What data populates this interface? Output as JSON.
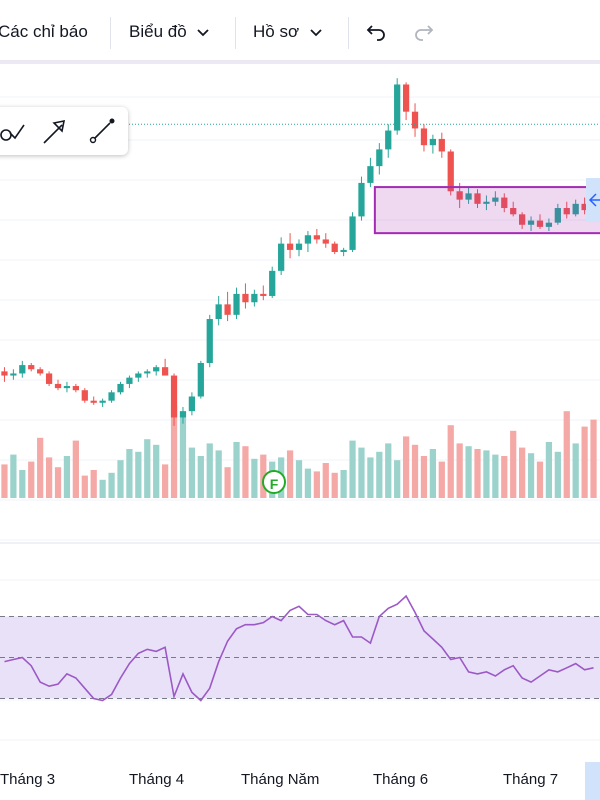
{
  "toolbar": {
    "indicators_label": "Các chỉ báo",
    "chart_type_label": "Biểu đồ",
    "profile_label": "Hồ sơ"
  },
  "drawing_tools": [
    "curve-tool-icon",
    "arrow-tool-icon",
    "ray-tool-icon"
  ],
  "event_badge": "F",
  "colors": {
    "up": "#26a69a",
    "down": "#ef5350",
    "rsi": "#9c59c6",
    "zone": "#e9e1f8",
    "box": "#a32bb4"
  },
  "chart_data": [
    {
      "type": "candlestick",
      "x_tick_labels": [
        "Tháng 3",
        "Tháng 4",
        "Tháng Năm",
        "Tháng 6",
        "Tháng 7"
      ],
      "candles_ohlc": [
        [
          13.8,
          14.0,
          13.3,
          13.6
        ],
        [
          13.6,
          13.9,
          13.4,
          13.7
        ],
        [
          13.7,
          14.3,
          13.5,
          14.1
        ],
        [
          14.1,
          14.2,
          13.8,
          13.9
        ],
        [
          13.9,
          14.0,
          13.6,
          13.7
        ],
        [
          13.7,
          13.8,
          13.1,
          13.2
        ],
        [
          13.2,
          13.4,
          12.9,
          13.0
        ],
        [
          13.0,
          13.3,
          12.8,
          13.1
        ],
        [
          13.1,
          13.2,
          12.8,
          12.9
        ],
        [
          12.9,
          13.0,
          12.3,
          12.4
        ],
        [
          12.4,
          12.6,
          12.2,
          12.3
        ],
        [
          12.3,
          12.5,
          12.1,
          12.4
        ],
        [
          12.4,
          12.9,
          12.3,
          12.8
        ],
        [
          12.8,
          13.3,
          12.7,
          13.2
        ],
        [
          13.2,
          13.6,
          13.0,
          13.5
        ],
        [
          13.5,
          13.8,
          13.3,
          13.7
        ],
        [
          13.7,
          13.9,
          13.5,
          13.8
        ],
        [
          13.8,
          14.1,
          13.6,
          14.0
        ],
        [
          14.0,
          14.4,
          13.8,
          13.6
        ],
        [
          13.6,
          13.7,
          11.2,
          11.6
        ],
        [
          11.6,
          12.1,
          11.3,
          11.9
        ],
        [
          11.9,
          12.8,
          11.7,
          12.6
        ],
        [
          12.6,
          14.3,
          12.5,
          14.2
        ],
        [
          14.2,
          16.5,
          14.0,
          16.3
        ],
        [
          16.3,
          17.4,
          16.0,
          17.0
        ],
        [
          17.0,
          17.6,
          16.2,
          16.5
        ],
        [
          16.5,
          17.8,
          16.3,
          17.5
        ],
        [
          17.5,
          18.0,
          16.8,
          17.1
        ],
        [
          17.1,
          17.7,
          16.9,
          17.5
        ],
        [
          17.5,
          17.9,
          17.2,
          17.4
        ],
        [
          17.4,
          18.8,
          17.3,
          18.6
        ],
        [
          18.6,
          20.2,
          18.4,
          19.9
        ],
        [
          19.9,
          20.4,
          19.2,
          19.6
        ],
        [
          19.6,
          20.1,
          19.3,
          19.9
        ],
        [
          19.9,
          20.5,
          19.5,
          20.3
        ],
        [
          20.3,
          20.6,
          19.9,
          20.1
        ],
        [
          20.1,
          20.4,
          19.7,
          19.9
        ],
        [
          19.9,
          20.0,
          19.4,
          19.5
        ],
        [
          19.5,
          19.7,
          19.3,
          19.6
        ],
        [
          19.6,
          21.4,
          19.5,
          21.2
        ],
        [
          21.2,
          23.1,
          21.0,
          22.8
        ],
        [
          22.8,
          24.0,
          22.6,
          23.6
        ],
        [
          23.6,
          24.7,
          23.2,
          24.4
        ],
        [
          24.4,
          25.6,
          24.0,
          25.3
        ],
        [
          25.3,
          27.8,
          25.1,
          27.5
        ],
        [
          27.5,
          27.6,
          25.8,
          26.2
        ],
        [
          26.2,
          26.6,
          25.0,
          25.4
        ],
        [
          25.4,
          25.6,
          24.3,
          24.6
        ],
        [
          24.6,
          25.1,
          24.2,
          24.9
        ],
        [
          24.9,
          25.2,
          24.0,
          24.3
        ],
        [
          24.3,
          24.4,
          22.2,
          22.4
        ],
        [
          22.4,
          22.8,
          21.6,
          22.0
        ],
        [
          22.0,
          22.6,
          21.8,
          22.3
        ],
        [
          22.3,
          22.5,
          21.6,
          21.8
        ],
        [
          21.8,
          22.2,
          21.5,
          21.9
        ],
        [
          21.9,
          22.4,
          21.7,
          22.1
        ],
        [
          22.1,
          22.3,
          21.4,
          21.6
        ],
        [
          21.6,
          21.9,
          21.2,
          21.3
        ],
        [
          21.3,
          21.4,
          20.6,
          20.8
        ],
        [
          20.8,
          21.2,
          20.5,
          21.0
        ],
        [
          21.0,
          21.3,
          20.6,
          20.7
        ],
        [
          20.7,
          21.1,
          20.5,
          20.9
        ],
        [
          20.9,
          21.8,
          20.8,
          21.6
        ],
        [
          21.6,
          21.9,
          21.1,
          21.3
        ],
        [
          21.3,
          22.0,
          21.2,
          21.8
        ],
        [
          21.8,
          22.1,
          21.3,
          21.5
        ],
        [
          21.5,
          21.8,
          21.0,
          21.2
        ]
      ],
      "volume": [
        2.4,
        3.1,
        2.0,
        2.6,
        4.3,
        2.9,
        2.2,
        3.0,
        4.1,
        1.6,
        2.0,
        1.3,
        1.8,
        2.7,
        3.5,
        3.3,
        4.2,
        3.8,
        2.4,
        6.6,
        5.8,
        3.6,
        3.0,
        3.9,
        3.4,
        2.2,
        4.0,
        3.7,
        2.8,
        3.1,
        2.6,
        2.9,
        3.4,
        2.7,
        2.1,
        1.9,
        2.5,
        1.8,
        2.0,
        4.1,
        3.6,
        2.9,
        3.3,
        3.9,
        2.7,
        4.4,
        3.8,
        3.0,
        3.5,
        2.6,
        5.2,
        3.9,
        3.7,
        3.5,
        3.4,
        3.1,
        3.0,
        4.8,
        3.6,
        3.2,
        2.6,
        4.0,
        3.3,
        6.2,
        3.9,
        5.1,
        5.6
      ],
      "price_reference_line": 25.6,
      "range_box": {
        "low": 20.4,
        "high": 22.6
      }
    },
    {
      "type": "line",
      "name": "",
      "ylim": [
        0,
        100
      ],
      "band": [
        30,
        70
      ],
      "midline": 50,
      "values": [
        48,
        49,
        50,
        46,
        38,
        36,
        37,
        42,
        40,
        35,
        30,
        29,
        32,
        40,
        47,
        52,
        54,
        53,
        55,
        31,
        42,
        33,
        29,
        35,
        48,
        58,
        64,
        66,
        66,
        67,
        70,
        68,
        73,
        75,
        71,
        71,
        68,
        66,
        68,
        60,
        60,
        57,
        70,
        74,
        76,
        80,
        72,
        63,
        59,
        55,
        49,
        50,
        43,
        42,
        43,
        41,
        44,
        46,
        40,
        38,
        41,
        44,
        43,
        45,
        47,
        44,
        45
      ]
    }
  ]
}
